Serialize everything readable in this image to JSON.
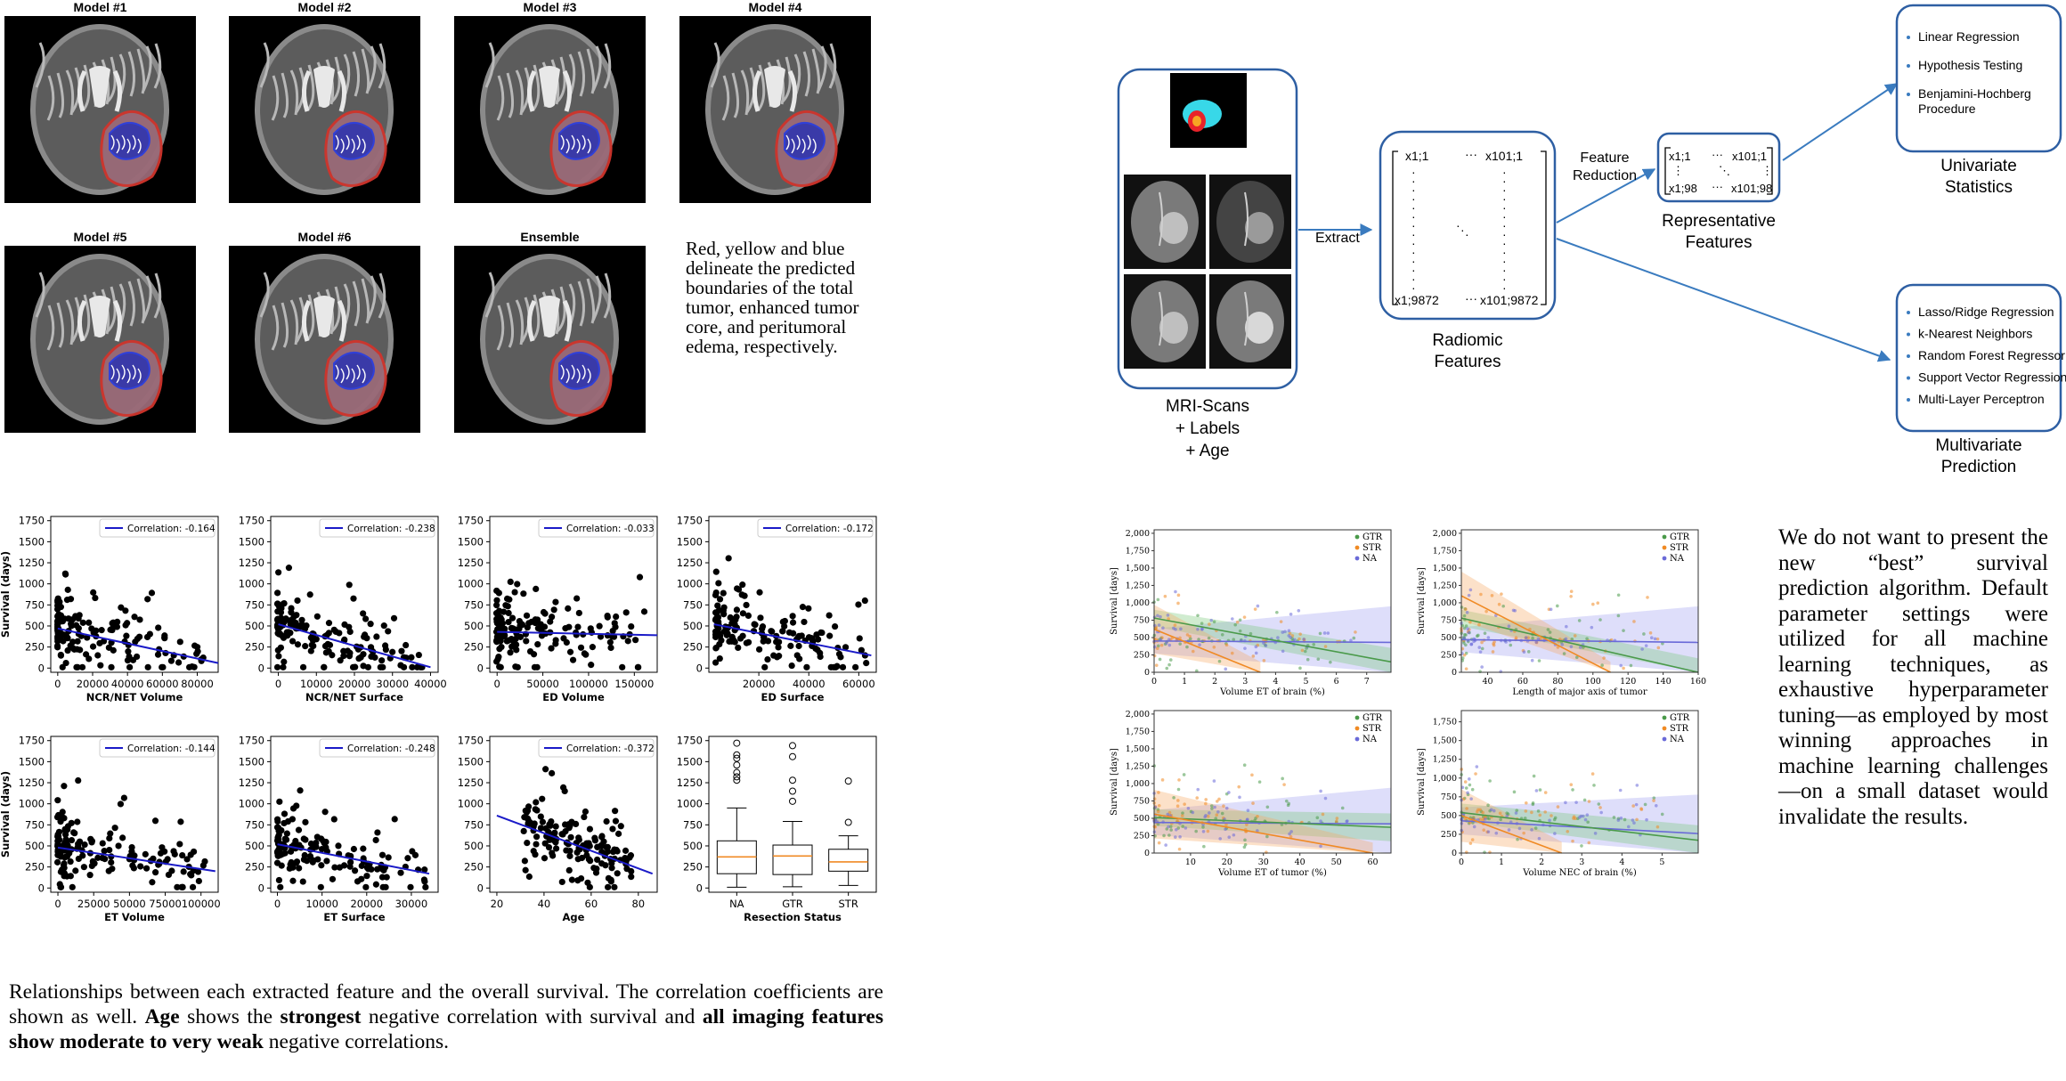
{
  "models": [
    {
      "label": "Model #1"
    },
    {
      "label": "Model #2"
    },
    {
      "label": "Model #3"
    },
    {
      "label": "Model #4"
    },
    {
      "label": "Model #5"
    },
    {
      "label": "Model #6"
    },
    {
      "label": "Ensemble"
    }
  ],
  "model_caption": "Red, yellow and blue delineate the predicted boundaries of the total tumor, enhanced tumor core, and peritumoral edema, respectively.",
  "scatter_caption_html": "Relationships between each extracted feature and the overall survival. The correlation coefficients are shown as well. <b>Age</b> shows the <b>strongest</b> negative correlation with survival and <b>all imaging features show moderate to very weak</b> negative correlations.",
  "right_text": "We do not want to present the new “best” survival prediction algorithm. Default parameter settings were utilized for all machine learning techniques, as exhaustive hyperparameter tuning—as employed by most winning approaches in machine learning challenges—on a small dataset would invalidate the results.",
  "diagram": {
    "mri_label": [
      "MRI-Scans",
      "+ Labels",
      "+ Age"
    ],
    "extract": "Extract",
    "radiomic_label": [
      "Radiomic",
      "Features"
    ],
    "feature_reduction": [
      "Feature",
      "Reduction"
    ],
    "representative_label": [
      "Representative",
      "Features"
    ],
    "matrix1": {
      "tl": "x1;1",
      "tr": "x101;1",
      "bl": "x1;9872",
      "br": "x101;9872"
    },
    "matrix2": {
      "tl": "x1;1",
      "tr": "x101;1",
      "bl": "x1;98",
      "br": "x101;98"
    },
    "univariate_items": [
      "Linear Regression",
      "Hypothesis Testing",
      "Benjamini-Hochberg Procedure"
    ],
    "univariate_label": [
      "Univariate",
      "Statistics"
    ],
    "multivariate_items": [
      "Lasso/Ridge Regression",
      "k-Nearest Neighbors",
      "Random Forest Regressor",
      "Support Vector Regression",
      "Multi-Layer Perceptron"
    ],
    "multivariate_label": [
      "Multivariate",
      "Prediction"
    ],
    "colors": {
      "box": "#2e5fa3",
      "arrow": "#3a7bbf"
    }
  },
  "chart_data": [
    {
      "type": "scatter",
      "title": "",
      "xlabel": "NCR/NET Volume",
      "ylabel": "Survival (days)",
      "legend": "Correlation: -0.164",
      "xlim": [
        -4000,
        92000
      ],
      "ylim": [
        -50,
        1800
      ],
      "xticks": [
        0,
        20000,
        40000,
        60000,
        80000
      ],
      "yticks": [
        0,
        250,
        500,
        750,
        1000,
        1250,
        1500,
        1750
      ],
      "fit": [
        [
          0,
          470
        ],
        [
          92000,
          60
        ]
      ]
    },
    {
      "type": "scatter",
      "title": "",
      "xlabel": "NCR/NET Surface",
      "ylabel": "",
      "legend": "Correlation: -0.238",
      "xlim": [
        -2000,
        42000
      ],
      "ylim": [
        -50,
        1800
      ],
      "xticks": [
        0,
        10000,
        20000,
        30000,
        40000
      ],
      "yticks": [
        0,
        250,
        500,
        750,
        1000,
        1250,
        1500,
        1750
      ],
      "fit": [
        [
          0,
          520
        ],
        [
          40000,
          10
        ]
      ]
    },
    {
      "type": "scatter",
      "title": "",
      "xlabel": "ED Volume",
      "ylabel": "",
      "legend": "Correlation: -0.033",
      "xlim": [
        -8000,
        175000
      ],
      "ylim": [
        -50,
        1800
      ],
      "xticks": [
        0,
        50000,
        100000,
        150000
      ],
      "yticks": [
        0,
        250,
        500,
        750,
        1000,
        1250,
        1500,
        1750
      ],
      "fit": [
        [
          0,
          430
        ],
        [
          175000,
          390
        ]
      ]
    },
    {
      "type": "scatter",
      "title": "",
      "xlabel": "ED Surface",
      "ylabel": "",
      "legend": "Correlation: -0.172",
      "xlim": [
        0,
        67000
      ],
      "ylim": [
        -50,
        1800
      ],
      "xticks": [
        20000,
        40000,
        60000
      ],
      "yticks": [
        0,
        250,
        500,
        750,
        1000,
        1250,
        1500,
        1750
      ],
      "fit": [
        [
          2000,
          520
        ],
        [
          65000,
          150
        ]
      ]
    },
    {
      "type": "scatter",
      "title": "",
      "xlabel": "ET Volume",
      "ylabel": "Survival (days)",
      "legend": "Correlation: -0.144",
      "xlim": [
        -5000,
        112000
      ],
      "ylim": [
        -50,
        1800
      ],
      "xticks": [
        0,
        25000,
        50000,
        75000,
        100000
      ],
      "yticks": [
        0,
        250,
        500,
        750,
        1000,
        1250,
        1500,
        1750
      ],
      "fit": [
        [
          0,
          480
        ],
        [
          110000,
          200
        ]
      ]
    },
    {
      "type": "scatter",
      "title": "",
      "xlabel": "ET Surface",
      "ylabel": "",
      "legend": "Correlation: -0.248",
      "xlim": [
        -1500,
        36000
      ],
      "ylim": [
        -50,
        1800
      ],
      "xticks": [
        0,
        10000,
        20000,
        30000
      ],
      "yticks": [
        0,
        250,
        500,
        750,
        1000,
        1250,
        1500,
        1750
      ],
      "fit": [
        [
          0,
          520
        ],
        [
          34000,
          170
        ]
      ]
    },
    {
      "type": "scatter",
      "title": "",
      "xlabel": "Age",
      "ylabel": "",
      "legend": "Correlation: -0.372",
      "xlim": [
        17,
        88
      ],
      "ylim": [
        -50,
        1800
      ],
      "xticks": [
        20,
        40,
        60,
        80
      ],
      "yticks": [
        0,
        250,
        500,
        750,
        1000,
        1250,
        1500,
        1750
      ],
      "fit": [
        [
          20,
          860
        ],
        [
          86,
          170
        ]
      ]
    },
    {
      "type": "box",
      "title": "",
      "xlabel": "Resection Status",
      "ylabel": "",
      "categories": [
        "NA",
        "GTR",
        "STR"
      ],
      "ylim": [
        -50,
        1800
      ],
      "yticks": [
        0,
        250,
        500,
        750,
        1000,
        1250,
        1500,
        1750
      ],
      "boxes": [
        {
          "q1": 170,
          "med": 370,
          "q3": 560,
          "lo": 10,
          "hi": 950,
          "out": [
            1280,
            1320,
            1370,
            1460,
            1540,
            1580,
            1720
          ]
        },
        {
          "q1": 160,
          "med": 380,
          "q3": 510,
          "lo": 15,
          "hi": 790,
          "out": [
            1030,
            1150,
            1280,
            1560,
            1690
          ]
        },
        {
          "q1": 200,
          "med": 310,
          "q3": 460,
          "lo": 30,
          "hi": 620,
          "out": [
            780,
            1270
          ]
        }
      ]
    },
    {
      "type": "scatter",
      "xlabel": "Volume ET of brain (%)",
      "ylabel": "Survival [days]",
      "legend": [
        "GTR",
        "STR",
        "NA"
      ],
      "xlim": [
        0,
        7.8
      ],
      "ylim": [
        0,
        2050
      ],
      "xticks": [
        0,
        1,
        2,
        3,
        4,
        5,
        6,
        7
      ],
      "yticks": [
        0,
        250,
        500,
        750,
        1000,
        1250,
        1500,
        1750,
        2000
      ]
    },
    {
      "type": "scatter",
      "xlabel": "Length of major axis of tumor",
      "ylabel": "Survival [days]",
      "legend": [
        "GTR",
        "STR",
        "NA"
      ],
      "xlim": [
        25,
        160
      ],
      "ylim": [
        0,
        2050
      ],
      "xticks": [
        40,
        60,
        80,
        100,
        120,
        140,
        160
      ],
      "yticks": [
        0,
        250,
        500,
        750,
        1000,
        1250,
        1500,
        1750,
        2000
      ]
    },
    {
      "type": "scatter",
      "xlabel": "Volume ET of tumor (%)",
      "ylabel": "Survival [days]",
      "legend": [
        "GTR",
        "STR",
        "NA"
      ],
      "xlim": [
        0,
        65
      ],
      "ylim": [
        0,
        2050
      ],
      "xticks": [
        10,
        20,
        30,
        40,
        50,
        60
      ],
      "yticks": [
        0,
        250,
        500,
        750,
        1000,
        1250,
        1500,
        1750,
        2000
      ]
    },
    {
      "type": "scatter",
      "xlabel": "Volume NEC of brain (%)",
      "ylabel": "Survival [days]",
      "legend": [
        "GTR",
        "STR",
        "NA"
      ],
      "xlim": [
        0,
        5.9
      ],
      "ylim": [
        0,
        1900
      ],
      "xticks": [
        0,
        1,
        2,
        3,
        4,
        5
      ],
      "yticks": [
        0,
        250,
        500,
        750,
        1000,
        1250,
        1500,
        1750
      ]
    }
  ]
}
